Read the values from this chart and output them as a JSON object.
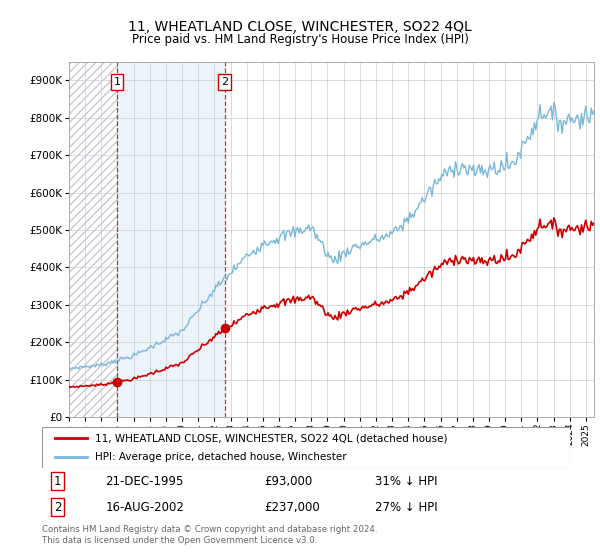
{
  "title": "11, WHEATLAND CLOSE, WINCHESTER, SO22 4QL",
  "subtitle": "Price paid vs. HM Land Registry's House Price Index (HPI)",
  "ylim": [
    0,
    950000
  ],
  "yticks": [
    0,
    100000,
    200000,
    300000,
    400000,
    500000,
    600000,
    700000,
    800000,
    900000
  ],
  "ytick_labels": [
    "£0",
    "£100K",
    "£200K",
    "£300K",
    "£400K",
    "£500K",
    "£600K",
    "£700K",
    "£800K",
    "£900K"
  ],
  "sale1_date_label": "21-DEC-1995",
  "sale1_price": 93000,
  "sale1_price_label": "£93,000",
  "sale1_hpi_label": "31% ↓ HPI",
  "sale2_date_label": "16-AUG-2002",
  "sale2_price": 237000,
  "sale2_price_label": "£237,000",
  "sale2_hpi_label": "27% ↓ HPI",
  "hpi_line_color": "#7ab8d9",
  "sale_line_color": "#cc0000",
  "legend_label1": "11, WHEATLAND CLOSE, WINCHESTER, SO22 4QL (detached house)",
  "legend_label2": "HPI: Average price, detached house, Winchester",
  "footer": "Contains HM Land Registry data © Crown copyright and database right 2024.\nThis data is licensed under the Open Government Licence v3.0.",
  "grid_color": "#cccccc",
  "sale1_x": 1995.97,
  "sale2_x": 2002.63,
  "xlim_start": 1993,
  "xlim_end": 2025.5
}
